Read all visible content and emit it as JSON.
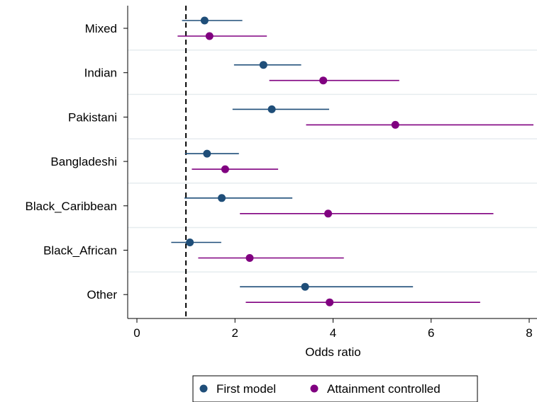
{
  "chart_data": {
    "type": "scatter",
    "subtype": "forest-plot",
    "title": "",
    "xlabel": "Odds ratio",
    "ylabel": "",
    "xlim": [
      -0.15,
      8.15
    ],
    "xticks": [
      0,
      2,
      4,
      6,
      8
    ],
    "tick_labels": [
      "0",
      "2",
      "4",
      "6",
      "8"
    ],
    "reference_line": 1,
    "grid": "horizontal separators between categories",
    "legend_position": "bottom",
    "categories": [
      "Mixed",
      "Indian",
      "Pakistani",
      "Bangladeshi",
      "Black_Caribbean",
      "Black_African",
      "Other"
    ],
    "series": [
      {
        "name": "First model",
        "color": "#1f4e79",
        "points": [
          {
            "estimate": 1.38,
            "lower": 0.92,
            "upper": 2.15
          },
          {
            "estimate": 2.58,
            "lower": 1.98,
            "upper": 3.35
          },
          {
            "estimate": 2.75,
            "lower": 1.95,
            "upper": 3.92
          },
          {
            "estimate": 1.43,
            "lower": 0.98,
            "upper": 2.08
          },
          {
            "estimate": 1.73,
            "lower": 0.97,
            "upper": 3.17
          },
          {
            "estimate": 1.08,
            "lower": 0.7,
            "upper": 1.72
          },
          {
            "estimate": 3.43,
            "lower": 2.1,
            "upper": 5.63
          }
        ]
      },
      {
        "name": "Attainment controlled",
        "color": "#800080",
        "points": [
          {
            "estimate": 1.48,
            "lower": 0.83,
            "upper": 2.65
          },
          {
            "estimate": 3.8,
            "lower": 2.7,
            "upper": 5.35
          },
          {
            "estimate": 5.27,
            "lower": 3.45,
            "upper": 8.1
          },
          {
            "estimate": 1.8,
            "lower": 1.12,
            "upper": 2.88
          },
          {
            "estimate": 3.9,
            "lower": 2.1,
            "upper": 7.27
          },
          {
            "estimate": 2.3,
            "lower": 1.25,
            "upper": 4.22
          },
          {
            "estimate": 3.93,
            "lower": 2.22,
            "upper": 7.0
          }
        ]
      }
    ]
  }
}
